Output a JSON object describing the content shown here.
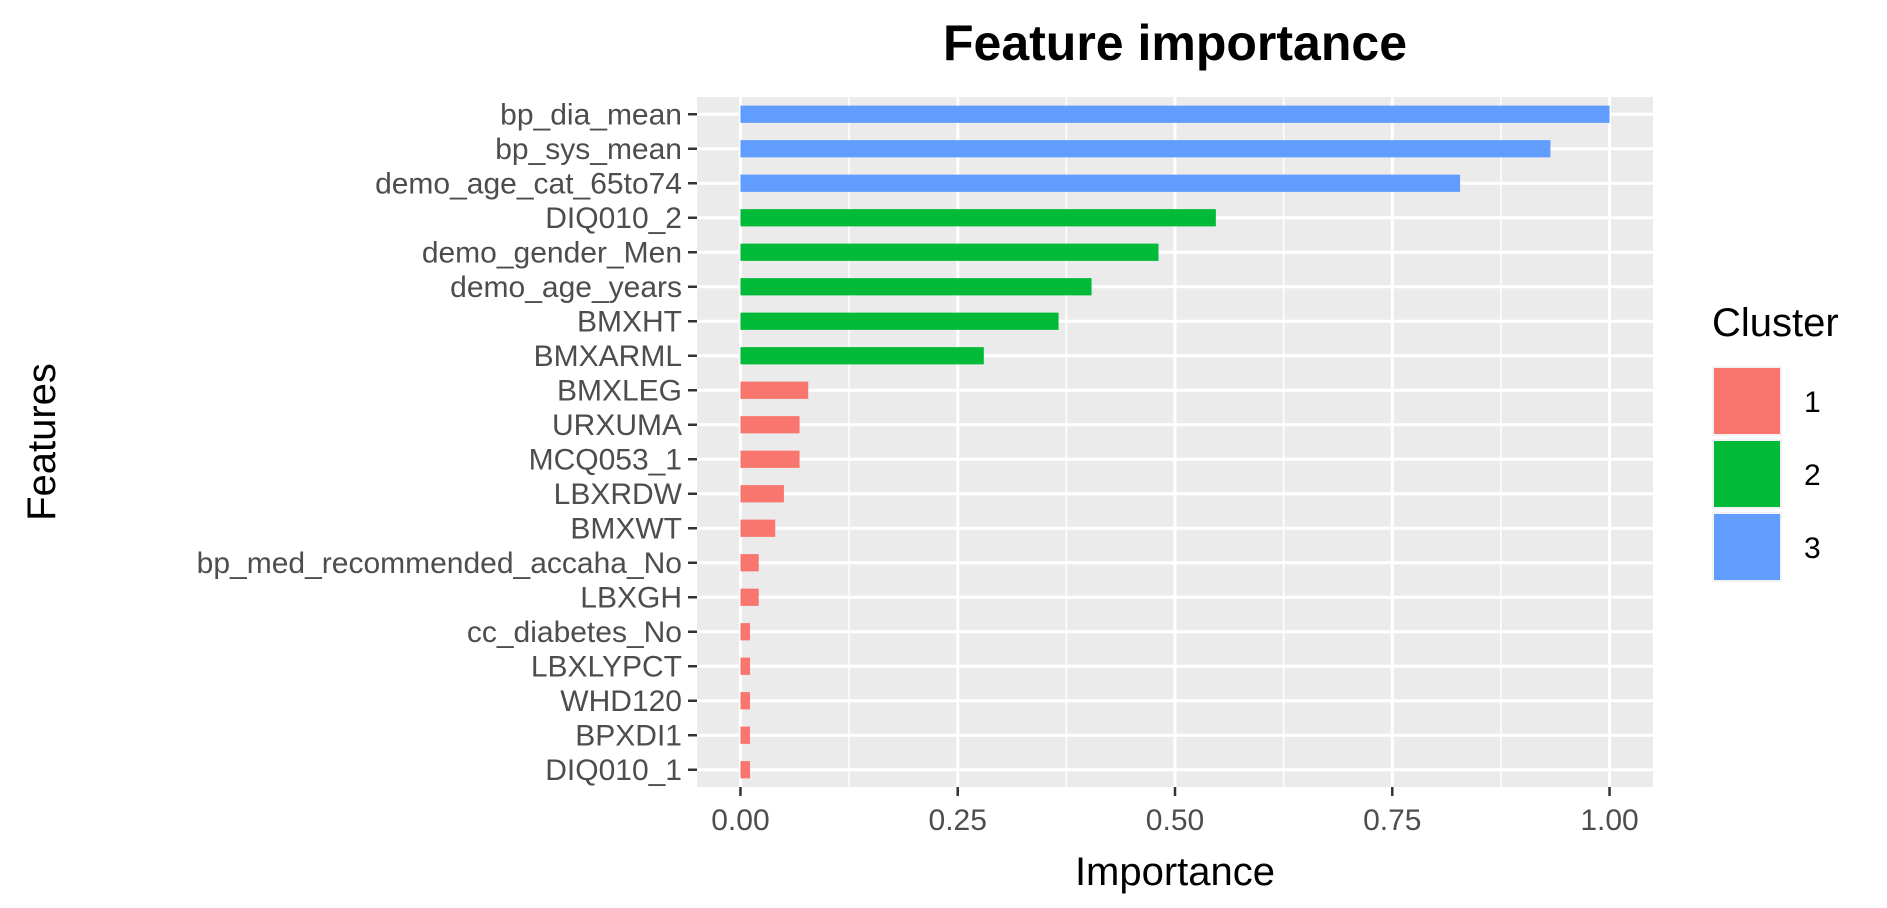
{
  "chart_data": {
    "type": "bar",
    "orientation": "horizontal",
    "title": "Feature importance",
    "xlabel": "Importance",
    "ylabel": "Features",
    "xlim": [
      -0.05,
      1.05
    ],
    "xticks": [
      "0.00",
      "0.25",
      "0.50",
      "0.75",
      "1.00"
    ],
    "grid": true,
    "legend": {
      "title": "Cluster",
      "placement": "right",
      "entries": [
        {
          "label": "1",
          "color": "#F8766D"
        },
        {
          "label": "2",
          "color": "#00BA38"
        },
        {
          "label": "3",
          "color": "#619CFF"
        }
      ]
    },
    "categories": [
      "bp_dia_mean",
      "bp_sys_mean",
      "demo_age_cat_65to74",
      "DIQ010_2",
      "demo_gender_Men",
      "demo_age_years",
      "BMXHT",
      "BMXARML",
      "BMXLEG",
      "URXUMA",
      "MCQ053_1",
      "LBXRDW",
      "BMXWT",
      "bp_med_recommended_accaha_No",
      "LBXGH",
      "cc_diabetes_No",
      "LBXLYPCT",
      "WHD120",
      "BPXDI1",
      "DIQ010_1"
    ],
    "values": [
      1.0,
      0.932,
      0.828,
      0.547,
      0.481,
      0.404,
      0.366,
      0.28,
      0.078,
      0.068,
      0.068,
      0.05,
      0.04,
      0.021,
      0.021,
      0.011,
      0.011,
      0.011,
      0.011,
      0.011
    ],
    "cluster": [
      "3",
      "3",
      "3",
      "2",
      "2",
      "2",
      "2",
      "2",
      "1",
      "1",
      "1",
      "1",
      "1",
      "1",
      "1",
      "1",
      "1",
      "1",
      "1",
      "1"
    ]
  }
}
